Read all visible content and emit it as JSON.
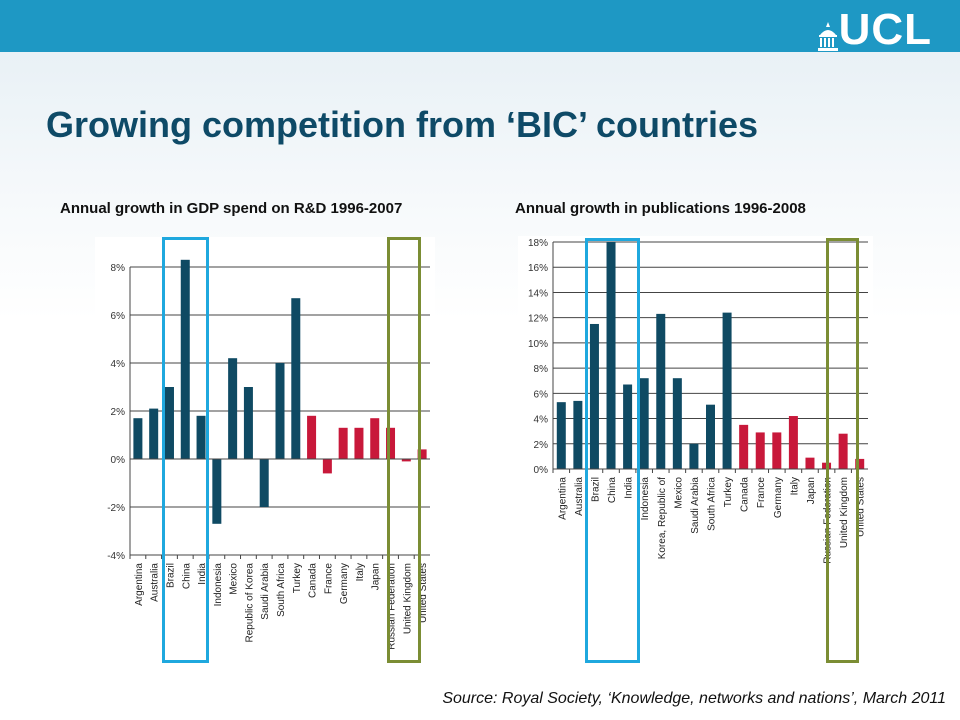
{
  "header": {
    "logo_text": "UCL",
    "title": "Growing competition from ‘BIC’ countries"
  },
  "source_note": "Source: Royal Society, ‘Knowledge, networks and nations’, March 2011",
  "colors": {
    "band": "#1e98c4",
    "title": "#0e4a67",
    "bar_group_a": "#0f4a63",
    "bar_group_b": "#c8183a",
    "highlight_bic": "#1fa8de",
    "highlight_developed": "#7b8d34"
  },
  "chart_data": [
    {
      "type": "bar",
      "title": "Annual growth in GDP spend on R&D 1996-2007",
      "xlabel": "",
      "ylabel": "",
      "ylim": [
        -4,
        8
      ],
      "yticks": [
        -4,
        -2,
        0,
        2,
        4,
        6,
        8
      ],
      "ytick_labels": [
        "-4%",
        "-2%",
        "0%",
        "2%",
        "4%",
        "6%",
        "8%"
      ],
      "grid": true,
      "categories": [
        "Argentina",
        "Australia",
        "Brazil",
        "China",
        "India",
        "Indonesia",
        "Mexico",
        "Republic of Korea",
        "Saudi Arabia",
        "South Africa",
        "Turkey",
        "Canada",
        "France",
        "Germany",
        "Italy",
        "Japan",
        "Russian Federation",
        "United Kingdom",
        "United States"
      ],
      "values": [
        1.7,
        2.1,
        3.0,
        8.3,
        1.8,
        -2.7,
        4.2,
        3.0,
        -2.0,
        4.0,
        6.7,
        1.8,
        -0.6,
        1.3,
        1.3,
        1.7,
        1.3,
        -0.1,
        0.4
      ],
      "groups": [
        "a",
        "a",
        "a",
        "a",
        "a",
        "a",
        "a",
        "a",
        "a",
        "a",
        "a",
        "b",
        "b",
        "b",
        "b",
        "b",
        "b",
        "b",
        "b"
      ],
      "highlight_bic": [
        "Brazil",
        "China",
        "India"
      ],
      "highlight_developed": [
        "Russian Federation",
        "United Kingdom",
        "United States"
      ]
    },
    {
      "type": "bar",
      "title": "Annual growth in publications 1996-2008",
      "xlabel": "",
      "ylabel": "",
      "ylim": [
        0,
        18
      ],
      "yticks": [
        0,
        2,
        4,
        6,
        8,
        10,
        12,
        14,
        16,
        18
      ],
      "ytick_labels": [
        "0%",
        "2%",
        "4%",
        "6%",
        "8%",
        "10%",
        "12%",
        "14%",
        "16%",
        "18%"
      ],
      "grid": true,
      "categories": [
        "Argentina",
        "Australia",
        "Brazil",
        "China",
        "India",
        "Indonesia",
        "Korea, Republic of",
        "Mexico",
        "Saudi Arabia",
        "South Africa",
        "Turkey",
        "Canada",
        "France",
        "Germany",
        "Italy",
        "Japan",
        "Russian Federation",
        "United Kingdom",
        "United States"
      ],
      "values": [
        5.3,
        5.4,
        11.5,
        18.0,
        6.7,
        7.2,
        12.3,
        7.2,
        2.0,
        5.1,
        12.4,
        3.5,
        2.9,
        2.9,
        4.2,
        0.9,
        0.5,
        2.8,
        0.8
      ],
      "groups": [
        "a",
        "a",
        "a",
        "a",
        "a",
        "a",
        "a",
        "a",
        "a",
        "a",
        "a",
        "b",
        "b",
        "b",
        "b",
        "b",
        "b",
        "b",
        "b"
      ],
      "highlight_bic": [
        "Brazil",
        "China",
        "India"
      ],
      "highlight_developed": [
        "United Kingdom",
        "United States"
      ]
    }
  ]
}
